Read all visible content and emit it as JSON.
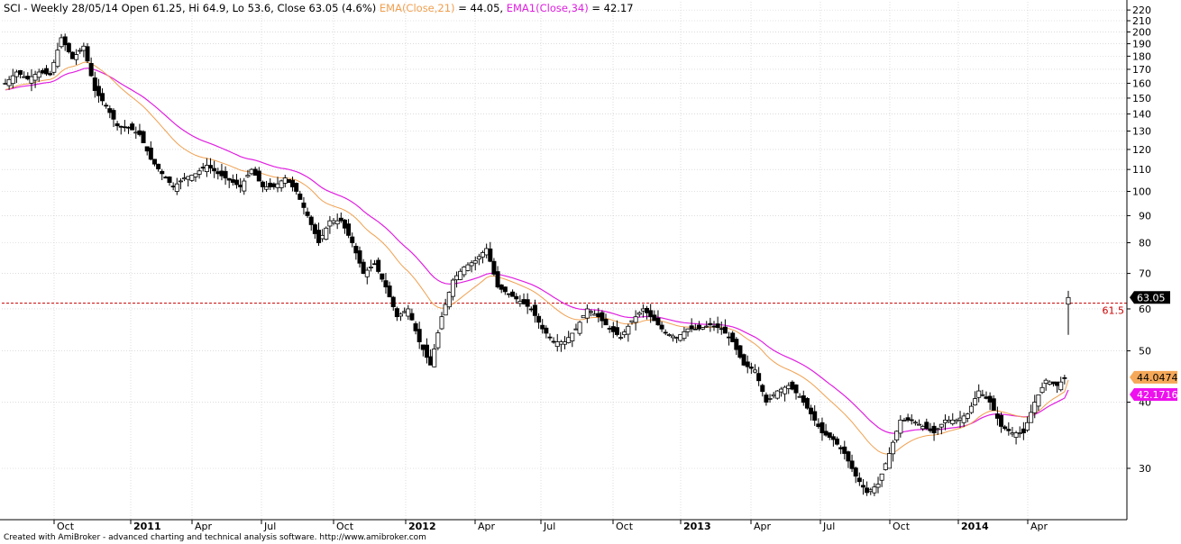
{
  "header": {
    "title_text": "SCI - Weekly 28/05/14 Open 61.25, Hi 64.9, Lo 53.6, Close 63.05 (4.6%)",
    "ema21_text": "EMA(Close,21)",
    "ema21_value_text": "= 44.05,",
    "ema34_text": "EMA1(Close,34)",
    "ema34_value_text": "= 42.17"
  },
  "footer_text": "Created with AmiBroker - advanced charting and technical analysis software. http://www.amibroker.com",
  "colors": {
    "ema21": "#f0a050",
    "ema34": "#e020e0",
    "ref_line": "#cc0000",
    "candle": "#000000",
    "price_badge_bg": "#000000",
    "ema21_badge_bg": "#f5a858",
    "ema34_badge_bg": "#ee10ee"
  },
  "chart_data": {
    "type": "candlestick",
    "scale": "log",
    "ylim": [
      24,
      228
    ],
    "y_ticks": [
      30,
      40,
      50,
      60,
      70,
      80,
      90,
      100,
      110,
      120,
      130,
      140,
      150,
      160,
      170,
      180,
      190,
      200,
      210,
      220
    ],
    "x_tick_labels": [
      {
        "label": "Oct",
        "bold": false
      },
      {
        "label": "2011",
        "bold": true
      },
      {
        "label": "Apr",
        "bold": false
      },
      {
        "label": "Jul",
        "bold": false
      },
      {
        "label": "Oct",
        "bold": false
      },
      {
        "label": "2012",
        "bold": true
      },
      {
        "label": "Apr",
        "bold": false
      },
      {
        "label": "Jul",
        "bold": false
      },
      {
        "label": "Oct",
        "bold": false
      },
      {
        "label": "2013",
        "bold": true
      },
      {
        "label": "Apr",
        "bold": false
      },
      {
        "label": "Jul",
        "bold": false
      },
      {
        "label": "Oct",
        "bold": false
      },
      {
        "label": "2014",
        "bold": true
      },
      {
        "label": "Apr",
        "bold": false
      }
    ],
    "reference_line": {
      "value": 61.5,
      "label": "61.5"
    },
    "badges": [
      {
        "value": 63.05,
        "label": "63.05",
        "kind": "price"
      },
      {
        "value": 44.0474,
        "label": "44.0474",
        "kind": "ema21"
      },
      {
        "value": 42.1716,
        "label": "42.1716",
        "kind": "ema34"
      }
    ],
    "close_anchors": [
      [
        0,
        160
      ],
      [
        3,
        168
      ],
      [
        6,
        163
      ],
      [
        9,
        168
      ],
      [
        12,
        166
      ],
      [
        15,
        195
      ],
      [
        18,
        178
      ],
      [
        21,
        188
      ],
      [
        24,
        155
      ],
      [
        27,
        145
      ],
      [
        30,
        133
      ],
      [
        33,
        132
      ],
      [
        36,
        128
      ],
      [
        39,
        115
      ],
      [
        42,
        108
      ],
      [
        45,
        102
      ],
      [
        48,
        106
      ],
      [
        51,
        108
      ],
      [
        54,
        112
      ],
      [
        57,
        108
      ],
      [
        60,
        105
      ],
      [
        63,
        102
      ],
      [
        66,
        110
      ],
      [
        69,
        102
      ],
      [
        72,
        102
      ],
      [
        75,
        106
      ],
      [
        78,
        100
      ],
      [
        81,
        90
      ],
      [
        84,
        80
      ],
      [
        87,
        88
      ],
      [
        90,
        88
      ],
      [
        93,
        80
      ],
      [
        96,
        70
      ],
      [
        99,
        73
      ],
      [
        102,
        66
      ],
      [
        105,
        58
      ],
      [
        108,
        60
      ],
      [
        111,
        52
      ],
      [
        114,
        47
      ],
      [
        117,
        58
      ],
      [
        120,
        68
      ],
      [
        123,
        72
      ],
      [
        126,
        74
      ],
      [
        129,
        78
      ],
      [
        132,
        66
      ],
      [
        135,
        64
      ],
      [
        138,
        62
      ],
      [
        141,
        60
      ],
      [
        144,
        55
      ],
      [
        147,
        52
      ],
      [
        150,
        52
      ],
      [
        153,
        55
      ],
      [
        156,
        60
      ],
      [
        159,
        58
      ],
      [
        162,
        55
      ],
      [
        165,
        53
      ],
      [
        168,
        57
      ],
      [
        171,
        60
      ],
      [
        174,
        57
      ],
      [
        177,
        54
      ],
      [
        180,
        53
      ],
      [
        183,
        55
      ],
      [
        186,
        55
      ],
      [
        189,
        56
      ],
      [
        192,
        55
      ],
      [
        195,
        52
      ],
      [
        198,
        47
      ],
      [
        201,
        46
      ],
      [
        204,
        40
      ],
      [
        207,
        42
      ],
      [
        210,
        43
      ],
      [
        213,
        41
      ],
      [
        216,
        38
      ],
      [
        219,
        35
      ],
      [
        222,
        34
      ],
      [
        225,
        32
      ],
      [
        228,
        29
      ],
      [
        231,
        27
      ],
      [
        234,
        28
      ],
      [
        237,
        32
      ],
      [
        240,
        37
      ],
      [
        243,
        37
      ],
      [
        246,
        36
      ],
      [
        249,
        35
      ],
      [
        252,
        37
      ],
      [
        255,
        37
      ],
      [
        258,
        38
      ],
      [
        261,
        42
      ],
      [
        264,
        40
      ],
      [
        267,
        36
      ],
      [
        270,
        35
      ],
      [
        273,
        35
      ],
      [
        276,
        40
      ],
      [
        279,
        44
      ],
      [
        282,
        43
      ],
      [
        285,
        45
      ]
    ],
    "last_candle": {
      "open": 61.25,
      "high": 64.9,
      "low": 53.6,
      "close": 63.05
    },
    "ema21_last": 44.05,
    "ema34_last": 42.17
  }
}
